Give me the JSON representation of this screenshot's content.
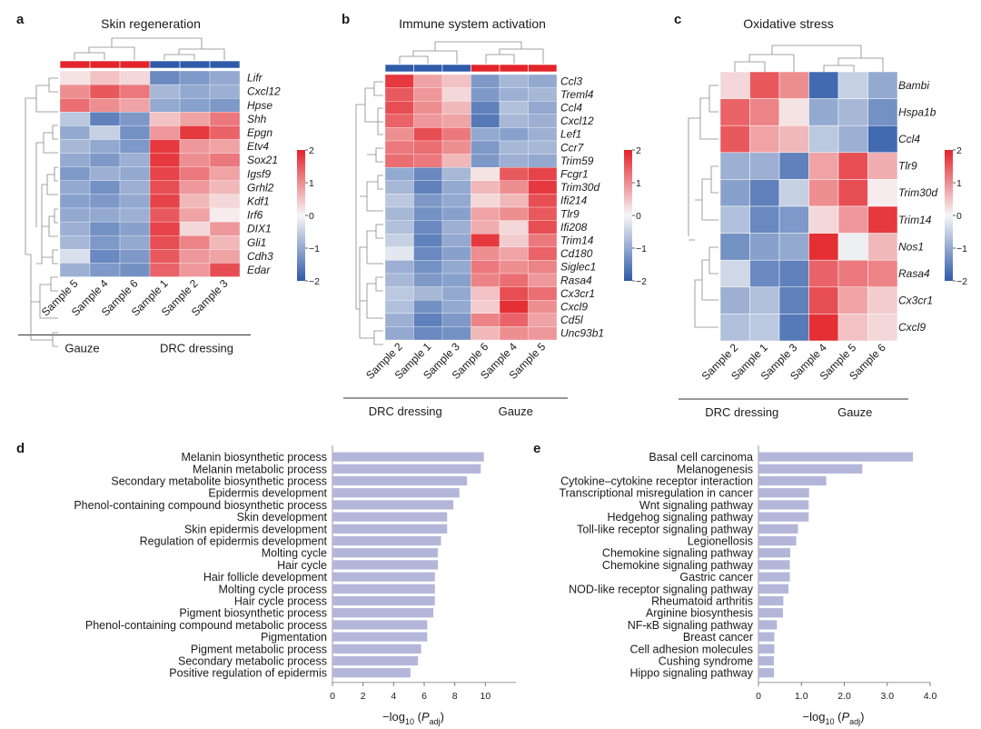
{
  "colors": {
    "low": "#2e5aa8",
    "mid": "#f7f7f7",
    "high": "#e3242b",
    "bar": "#b3b6d8",
    "axis": "#444444"
  },
  "heatmaps": [
    {
      "id": "a",
      "panel_label": "a",
      "title": "Skin regeneration",
      "genes": [
        "Lifr",
        "Cxcl12",
        "Hpse",
        "Shh",
        "Epgn",
        "Etv4",
        "Sox21",
        "Igsf9",
        "Grhl2",
        "Kdf1",
        "Irf6",
        "DIX1",
        "Gli1",
        "Cdh3",
        "Edar"
      ],
      "samples": [
        "Sample 5",
        "Sample 4",
        "Sample 6",
        "Sample 1",
        "Sample 2",
        "Sample 3"
      ],
      "top_bar": [
        "high",
        "high",
        "high",
        "low",
        "low",
        "low"
      ],
      "groups": [
        {
          "label": "Gauze",
          "span": [
            0,
            2
          ]
        },
        {
          "label": "DRC dressing",
          "span": [
            3,
            5
          ]
        }
      ],
      "values": [
        [
          0.2,
          0.5,
          0.3,
          -1.4,
          -1.2,
          -1.0
        ],
        [
          1.0,
          1.5,
          1.2,
          -0.8,
          -1.0,
          -0.9
        ],
        [
          1.3,
          1.0,
          0.8,
          -1.0,
          -1.1,
          -1.2
        ],
        [
          -0.6,
          -1.5,
          -1.2,
          0.5,
          0.8,
          1.2
        ],
        [
          -1.0,
          -0.5,
          -1.3,
          0.9,
          1.8,
          1.4
        ],
        [
          -0.8,
          -1.0,
          -1.2,
          1.8,
          0.9,
          0.8
        ],
        [
          -1.0,
          -1.2,
          -0.9,
          1.8,
          1.0,
          1.2
        ],
        [
          -1.2,
          -0.9,
          -1.0,
          1.7,
          1.2,
          0.8
        ],
        [
          -1.0,
          -1.3,
          -0.9,
          1.6,
          0.9,
          0.6
        ],
        [
          -1.1,
          -1.2,
          -1.0,
          1.7,
          0.6,
          0.3
        ],
        [
          -1.0,
          -1.0,
          -0.9,
          1.5,
          0.8,
          0.1
        ],
        [
          -0.9,
          -1.3,
          -1.1,
          1.7,
          0.3,
          0.9
        ],
        [
          -0.8,
          -1.2,
          -1.0,
          1.6,
          1.1,
          0.6
        ],
        [
          -0.3,
          -1.4,
          -1.2,
          1.5,
          0.9,
          0.8
        ],
        [
          -0.9,
          -1.2,
          -1.3,
          1.4,
          0.9,
          1.6
        ]
      ]
    },
    {
      "id": "b",
      "panel_label": "b",
      "title": "Immune system activation",
      "genes": [
        "Ccl3",
        "Treml4",
        "Ccl4",
        "Cxcl12",
        "Lef1",
        "Ccr7",
        "Trim59",
        "Fcgr1",
        "Trim30d",
        "Ifi214",
        "Tlr9",
        "Ifi208",
        "Trim14",
        "Cd180",
        "Siglec1",
        "Rasa4",
        "Cx3cr1",
        "Cxcl9",
        "Cd5l",
        "Unc93b1"
      ],
      "samples": [
        "Sample 2",
        "Sample 1",
        "Sample 3",
        "Sample 6",
        "Sample 4",
        "Sample 5"
      ],
      "top_bar": [
        "low",
        "low",
        "low",
        "high",
        "high",
        "high"
      ],
      "groups": [
        {
          "label": "DRC dressing",
          "span": [
            0,
            2
          ]
        },
        {
          "label": "Gauze",
          "span": [
            3,
            5
          ]
        }
      ],
      "values": [
        [
          1.8,
          0.8,
          0.5,
          -1.2,
          -0.8,
          -1.0
        ],
        [
          1.5,
          0.9,
          0.3,
          -1.2,
          -0.9,
          -0.8
        ],
        [
          1.6,
          1.0,
          0.6,
          -1.5,
          -0.7,
          -1.0
        ],
        [
          1.4,
          0.9,
          0.8,
          -1.6,
          -0.8,
          -0.9
        ],
        [
          1.0,
          1.6,
          1.2,
          -1.0,
          -1.1,
          -0.9
        ],
        [
          1.2,
          1.3,
          1.0,
          -1.2,
          -0.8,
          -0.8
        ],
        [
          1.3,
          1.2,
          0.6,
          -1.2,
          -0.9,
          -1.0
        ],
        [
          -1.0,
          -1.4,
          -0.8,
          0.2,
          1.5,
          1.7
        ],
        [
          -0.8,
          -1.5,
          -1.0,
          0.6,
          1.0,
          1.8
        ],
        [
          -0.6,
          -1.2,
          -1.0,
          0.3,
          0.6,
          1.6
        ],
        [
          -0.8,
          -1.3,
          -1.1,
          0.8,
          1.0,
          1.5
        ],
        [
          -0.7,
          -1.4,
          -0.9,
          0.7,
          0.3,
          1.6
        ],
        [
          -0.5,
          -1.5,
          -1.0,
          1.8,
          0.4,
          1.2
        ],
        [
          -0.2,
          -1.4,
          -1.1,
          1.0,
          0.8,
          1.4
        ],
        [
          -0.9,
          -1.3,
          -1.0,
          1.2,
          1.0,
          1.1
        ],
        [
          -0.8,
          -1.2,
          -1.1,
          1.1,
          1.3,
          0.9
        ],
        [
          -0.6,
          -0.8,
          -1.0,
          0.5,
          1.6,
          1.3
        ],
        [
          -0.7,
          -1.3,
          -1.0,
          0.4,
          1.9,
          1.0
        ],
        [
          -0.9,
          -1.5,
          -1.2,
          1.1,
          1.4,
          0.8
        ],
        [
          -1.0,
          -1.4,
          -1.3,
          0.6,
          1.0,
          0.9
        ]
      ]
    },
    {
      "id": "c",
      "panel_label": "c",
      "title": "Oxidative stress",
      "genes": [
        "Bambi",
        "Hspa1b",
        "Ccl4",
        "Tlr9",
        "Trim30d",
        "Trim14",
        "Nos1",
        "Rasa4",
        "Cx3cr1",
        "Cxcl9"
      ],
      "samples": [
        "Sample 2",
        "Sample 1",
        "Sample 3",
        "Sample 4",
        "Sample 5",
        "Sample 6"
      ],
      "top_bar": [],
      "groups": [
        {
          "label": "DRC dressing",
          "span": [
            0,
            2
          ]
        },
        {
          "label": "Gauze",
          "span": [
            3,
            5
          ]
        }
      ],
      "values": [
        [
          0.3,
          1.5,
          1.0,
          -1.8,
          -0.5,
          -1.0
        ],
        [
          1.4,
          1.1,
          0.2,
          -1.0,
          -0.8,
          -1.3
        ],
        [
          1.5,
          0.8,
          0.6,
          -0.6,
          -0.9,
          -1.8
        ],
        [
          -0.9,
          -0.9,
          -1.5,
          0.8,
          1.6,
          0.7
        ],
        [
          -1.1,
          -1.5,
          -0.5,
          1.0,
          1.6,
          0.1
        ],
        [
          -0.7,
          -1.4,
          -1.2,
          0.3,
          0.9,
          1.8
        ],
        [
          -1.3,
          -1.1,
          -1.0,
          1.9,
          -0.1,
          0.6
        ],
        [
          -0.4,
          -1.4,
          -1.5,
          1.4,
          1.2,
          1.1
        ],
        [
          -0.9,
          -0.7,
          -1.5,
          1.6,
          0.8,
          0.4
        ],
        [
          -0.7,
          -0.6,
          -1.6,
          1.9,
          0.5,
          0.3
        ]
      ]
    }
  ],
  "colorbar": {
    "ticks": [
      "2",
      "1",
      "0",
      "−1",
      "−2"
    ]
  },
  "chart_data": [
    {
      "type": "bar",
      "orientation": "horizontal",
      "panel_label": "d",
      "categories": [
        "Melanin biosynthetic process",
        "Melanin metabolic process",
        "Secondary metabolite biosynthetic process",
        "Epidermis development",
        "Phenol-containing compound biosynthetic process",
        "Skin development",
        "Skin epidermis development",
        "Regulation of epidermis development",
        "Molting cycle",
        "Hair cycle",
        "Hair follicle development",
        "Molting cycle process",
        "Hair cycle process",
        "Pigment biosynthetic process",
        "Phenol-containing compound metabolic process",
        "Pigmentation",
        "Pigment metabolic process",
        "Secondary metabolic process",
        "Positive regulation of epidermis"
      ],
      "values": [
        9.9,
        9.7,
        8.8,
        8.3,
        7.9,
        7.5,
        7.5,
        7.1,
        6.9,
        6.9,
        6.7,
        6.7,
        6.7,
        6.6,
        6.2,
        6.2,
        5.8,
        5.6,
        5.1
      ],
      "xlim": [
        0,
        12
      ],
      "xticks": [
        "0",
        "2",
        "4",
        "6",
        "8",
        "10"
      ],
      "xticks_values": [
        0,
        2,
        4,
        6,
        8,
        10
      ],
      "xlabel": "−log",
      "xlabel_sub": "10",
      "xlabel_p": "P",
      "xlabel_psub": "adj"
    },
    {
      "type": "bar",
      "orientation": "horizontal",
      "panel_label": "e",
      "categories": [
        "Basal cell carcinoma",
        "Melanogenesis",
        "Cytokine–cytokine receptor interaction",
        "Transcriptional misregulation in cancer",
        "Wnt signaling pathway",
        "Hedgehog signaling pathway",
        "Toll-like receptor signaling pathway",
        "Legionellosis",
        "Chemokine signaling pathway",
        "Chemokine signaling pathway",
        "Gastric cancer",
        "NOD-like receptor signaling pathway",
        "Rheumatoid arthritis",
        "Arginine biosynthesis",
        "NF-κB signaling pathway",
        "Breast cancer",
        "Cell adhesion molecules",
        "Cushing syndrome",
        "Hippo signaling pathway"
      ],
      "values": [
        3.6,
        2.42,
        1.58,
        1.18,
        1.17,
        1.17,
        0.92,
        0.88,
        0.74,
        0.73,
        0.73,
        0.7,
        0.58,
        0.57,
        0.43,
        0.37,
        0.37,
        0.36,
        0.36
      ],
      "xlim": [
        0,
        4.0
      ],
      "xticks": [
        "0",
        "1.0",
        "2.0",
        "3.0",
        "4.0"
      ],
      "xticks_values": [
        0,
        1,
        2,
        3,
        4
      ],
      "xlabel": "−log",
      "xlabel_sub": "10",
      "xlabel_p": "P",
      "xlabel_psub": "adj"
    }
  ]
}
